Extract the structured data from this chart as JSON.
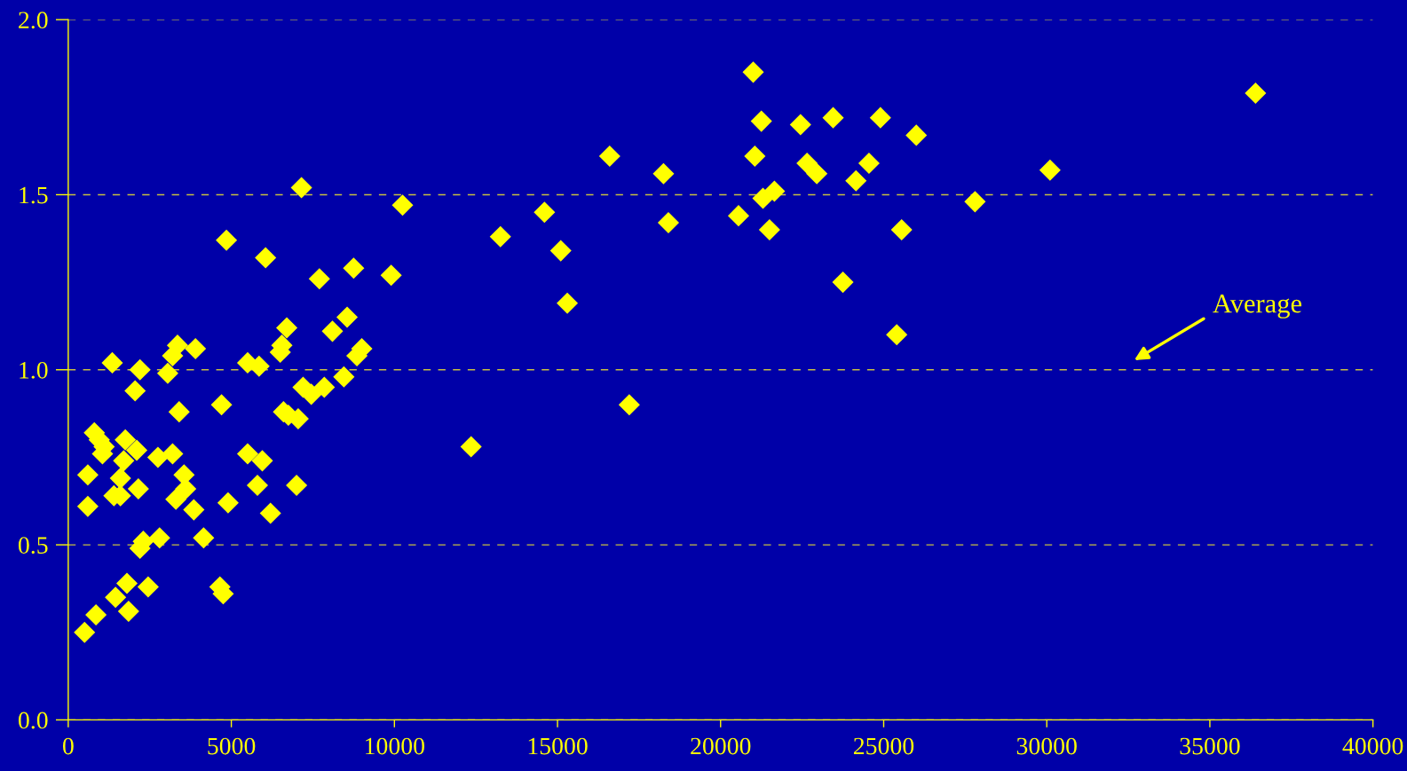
{
  "chart_data": {
    "type": "scatter",
    "marker": "diamond",
    "grid": "y",
    "xlim": [
      0,
      40000
    ],
    "ylim": [
      0,
      2.0
    ],
    "xticks": [
      0,
      5000,
      10000,
      15000,
      20000,
      25000,
      30000,
      35000,
      40000
    ],
    "yticks": [
      {
        "value": 0,
        "label": "0.0"
      },
      {
        "value": 0.5,
        "label": "0.5"
      },
      {
        "value": 1.0,
        "label": "1.0"
      },
      {
        "value": 1.5,
        "label": "1.5"
      },
      {
        "value": 2.0,
        "label": "2.0"
      }
    ],
    "annotations": [
      "Average"
    ],
    "series": [
      {
        "color": "#ffff00",
        "x": [
          21000,
          36400,
          21250,
          22450,
          23450,
          24900,
          26000,
          16600,
          21050,
          22650,
          22950,
          24550,
          30100,
          18250,
          24150,
          21650,
          21300,
          27800,
          10250,
          14600,
          20550,
          18400,
          21500,
          25550,
          13250,
          15100,
          23750,
          15300,
          25400,
          17200,
          12350,
          7150,
          4850,
          6050,
          8750,
          9900,
          7700,
          8550,
          6700,
          8100,
          6550,
          6500,
          9000,
          8850,
          5500,
          5850,
          8450,
          7200,
          7450,
          7850,
          4700,
          6600,
          6750,
          7050,
          5500,
          5950,
          4900,
          5800,
          7000,
          6200,
          4150,
          4650,
          4750,
          1350,
          2200,
          3050,
          3350,
          3200,
          3900,
          2050,
          3400,
          800,
          950,
          1100,
          1050,
          1750,
          2100,
          1700,
          2750,
          3200,
          600,
          1600,
          2150,
          1400,
          1600,
          3550,
          3600,
          3300,
          3850,
          600,
          2300,
          2200,
          2800,
          1800,
          2450,
          1450,
          1850,
          850,
          500
        ],
        "values": [
          1.85,
          1.79,
          1.71,
          1.7,
          1.72,
          1.72,
          1.67,
          1.61,
          1.61,
          1.59,
          1.56,
          1.59,
          1.57,
          1.56,
          1.54,
          1.51,
          1.49,
          1.48,
          1.47,
          1.45,
          1.44,
          1.42,
          1.4,
          1.4,
          1.38,
          1.34,
          1.25,
          1.19,
          1.1,
          0.9,
          0.78,
          1.52,
          1.37,
          1.32,
          1.29,
          1.27,
          1.26,
          1.15,
          1.12,
          1.11,
          1.07,
          1.05,
          1.06,
          1.04,
          1.02,
          1.01,
          0.98,
          0.95,
          0.93,
          0.95,
          0.9,
          0.88,
          0.87,
          0.86,
          0.76,
          0.74,
          0.62,
          0.67,
          0.67,
          0.59,
          0.52,
          0.38,
          0.36,
          1.02,
          1.0,
          0.99,
          1.07,
          1.04,
          1.06,
          0.94,
          0.88,
          0.82,
          0.8,
          0.78,
          0.76,
          0.8,
          0.77,
          0.74,
          0.75,
          0.76,
          0.7,
          0.69,
          0.66,
          0.64,
          0.64,
          0.7,
          0.66,
          0.63,
          0.6,
          0.61,
          0.51,
          0.49,
          0.52,
          0.39,
          0.38,
          0.35,
          0.31,
          0.3,
          0.25
        ]
      }
    ]
  }
}
